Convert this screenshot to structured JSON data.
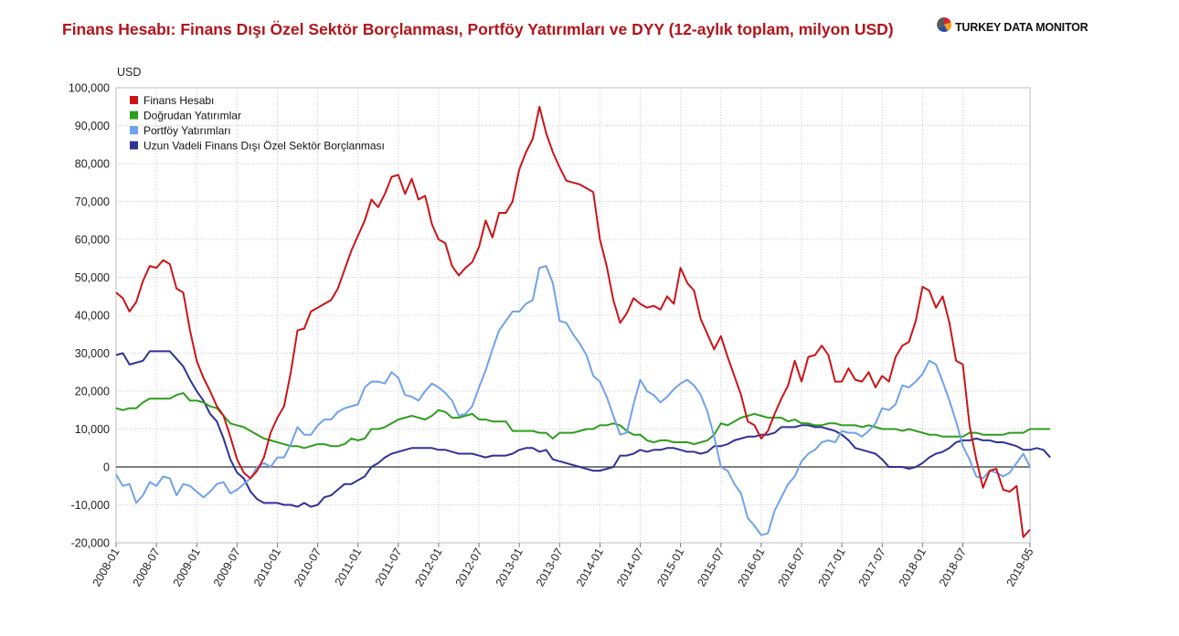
{
  "header": {
    "title": "Finans Hesabı: Finans Dışı Özel Sektör Borçlanması, Portföy Yatırımları ve DYY (12-aylık toplam, milyon USD)",
    "brand": "TURKEY DATA MONITOR"
  },
  "chart_data": {
    "type": "line",
    "title": "Finans Hesabı: Finans Dışı Özel Sektör Borçlanması, Portföy Yatırımları ve DYY (12-aylık toplam, milyon USD)",
    "ylabel": "USD",
    "xlabel": "",
    "ylim": [
      -20000,
      100000
    ],
    "yticks": [
      100000,
      90000,
      80000,
      70000,
      60000,
      50000,
      40000,
      30000,
      20000,
      10000,
      0,
      -10000,
      -20000
    ],
    "ytick_labels": [
      "100,000",
      "90,000",
      "80,000",
      "70,000",
      "60,000",
      "50,000",
      "40,000",
      "30,000",
      "20,000",
      "10,000",
      "0",
      "-10,000",
      "-20,000"
    ],
    "x_start": "2008-01",
    "x_end": "2019-05",
    "xtick_labels": [
      "2008-01",
      "2008-07",
      "2009-01",
      "2009-07",
      "2010-01",
      "2010-07",
      "2011-01",
      "2011-07",
      "2012-01",
      "2012-07",
      "2013-01",
      "2013-07",
      "2014-01",
      "2014-07",
      "2015-01",
      "2015-07",
      "2016-01",
      "2016-07",
      "2017-01",
      "2017-07",
      "2018-01",
      "2018-07",
      "2019-05"
    ],
    "grid": true,
    "legend_position": "top-left",
    "series": [
      {
        "name": "Finans Hesabı",
        "color": "#cc1417",
        "values": [
          46000,
          44500,
          41000,
          43500,
          49000,
          53000,
          52500,
          54500,
          53500,
          47000,
          46000,
          36000,
          28000,
          23500,
          20000,
          16000,
          13500,
          8000,
          2000,
          -1500,
          -3000,
          -1000,
          2500,
          9000,
          13000,
          16000,
          25000,
          36000,
          36500,
          41000,
          42000,
          43000,
          44000,
          47000,
          52000,
          57000,
          61000,
          65000,
          70500,
          68500,
          72000,
          76500,
          77000,
          72000,
          76000,
          70500,
          71500,
          64000,
          60000,
          59000,
          53000,
          50500,
          52500,
          54000,
          58000,
          65000,
          60500,
          67000,
          67000,
          70000,
          78500,
          83000,
          86500,
          95000,
          88000,
          83000,
          79000,
          75500,
          75000,
          74500,
          73500,
          72500,
          60000,
          53000,
          44000,
          38000,
          40500,
          44500,
          43000,
          42000,
          42500,
          41500,
          45000,
          43000,
          52500,
          48500,
          46500,
          39000,
          35000,
          31000,
          34500,
          29000,
          24000,
          19000,
          12000,
          11000,
          7500,
          9500,
          14000,
          18000,
          21500,
          28000,
          22500,
          29000,
          29500,
          32000,
          29500,
          22500,
          22500,
          26000,
          23000,
          22500,
          25000,
          21000,
          24000,
          22500,
          29000,
          32000,
          33000,
          38500,
          47500,
          46500,
          42000,
          45000,
          38000,
          28000,
          27000,
          11000,
          2000,
          -5500,
          -1000,
          -500,
          -6000,
          -6500,
          -5000,
          -18500,
          -16500
        ]
      },
      {
        "name": "Doğrudan Yatırımlar",
        "color": "#2e9c1e",
        "values": [
          15500,
          15000,
          15500,
          15500,
          17000,
          18000,
          18000,
          18000,
          18000,
          19000,
          19500,
          17500,
          17500,
          17000,
          16000,
          15500,
          13500,
          11500,
          11000,
          10500,
          9500,
          8500,
          7500,
          7000,
          6500,
          6000,
          5500,
          5500,
          5000,
          5500,
          6000,
          6000,
          5500,
          5500,
          6000,
          7500,
          7000,
          7500,
          10000,
          10000,
          10500,
          11500,
          12500,
          13000,
          13500,
          13000,
          12500,
          13500,
          15000,
          14500,
          13000,
          13000,
          13500,
          14000,
          12500,
          12500,
          12000,
          12000,
          12000,
          9500,
          9500,
          9500,
          9500,
          9000,
          9000,
          7500,
          9000,
          9000,
          9000,
          9500,
          10000,
          10000,
          11000,
          11000,
          11500,
          11000,
          9500,
          8500,
          8500,
          7000,
          6500,
          7000,
          7000,
          6500,
          6500,
          6500,
          6000,
          6500,
          7000,
          8500,
          11500,
          11000,
          12000,
          13000,
          13500,
          14000,
          13500,
          13000,
          13000,
          13000,
          12000,
          12500,
          11500,
          11500,
          11000,
          11000,
          11500,
          11500,
          11000,
          11000,
          11000,
          10500,
          11000,
          10500,
          10000,
          10000,
          10000,
          9500,
          10000,
          9500,
          9000,
          8500,
          8500,
          8000,
          8000,
          8000,
          8000,
          9000,
          9000,
          8500,
          8500,
          8500,
          8500,
          9000,
          9000,
          9000,
          10000,
          10000,
          10000,
          10000
        ]
      },
      {
        "name": "Portföy Yatırımları",
        "color": "#6fa2ea",
        "values": [
          -2000,
          -5000,
          -4500,
          -9500,
          -7500,
          -4000,
          -5000,
          -2500,
          -3000,
          -7500,
          -4500,
          -5000,
          -6500,
          -8000,
          -6500,
          -4500,
          -4000,
          -7000,
          -6000,
          -4500,
          -3000,
          0,
          1000,
          0,
          2500,
          2500,
          6000,
          10500,
          8500,
          8500,
          11000,
          12500,
          12500,
          14500,
          15500,
          16000,
          16500,
          21000,
          22500,
          22500,
          22000,
          25000,
          23500,
          19000,
          18500,
          17500,
          20000,
          22000,
          21000,
          19500,
          17500,
          13500,
          14000,
          16000,
          21000,
          25500,
          31000,
          36000,
          38500,
          41000,
          41000,
          43000,
          44000,
          52500,
          53000,
          48500,
          38500,
          38000,
          35000,
          32500,
          29500,
          24000,
          22500,
          18500,
          13500,
          8500,
          9000,
          16500,
          23000,
          20000,
          19000,
          17000,
          18500,
          20500,
          22000,
          23000,
          21500,
          19000,
          14500,
          8000,
          0,
          -1000,
          -4500,
          -7000,
          -13500,
          -15500,
          -18000,
          -17500,
          -11500,
          -8000,
          -4500,
          -2500,
          1500,
          3500,
          4500,
          6500,
          7000,
          6500,
          9500,
          9000,
          9000,
          8000,
          9500,
          11500,
          15500,
          15000,
          16500,
          21500,
          21000,
          22500,
          24500,
          28000,
          27000,
          22500,
          17500,
          12000,
          5500,
          2000,
          -2500,
          -3000,
          -1000,
          -1500,
          -2500,
          -1500,
          1000,
          3500,
          0
        ]
      },
      {
        "name": "Uzun Vadeli Finans Dışı Özel Sektör Borçlanması",
        "color": "#2f3296",
        "values": [
          29500,
          30000,
          27000,
          27500,
          28000,
          30500,
          30500,
          30500,
          30500,
          28500,
          26500,
          23000,
          20000,
          17500,
          14000,
          12000,
          7500,
          2000,
          -1500,
          -3000,
          -6500,
          -8500,
          -9500,
          -9500,
          -9500,
          -10000,
          -10000,
          -10500,
          -9500,
          -10500,
          -10000,
          -8000,
          -7500,
          -6000,
          -4500,
          -4500,
          -3500,
          -2500,
          0,
          1000,
          2500,
          3500,
          4000,
          4500,
          5000,
          5000,
          5000,
          5000,
          4500,
          4500,
          4000,
          3500,
          3500,
          3500,
          3000,
          2500,
          3000,
          3000,
          3000,
          3500,
          4500,
          5000,
          5000,
          4000,
          4500,
          2000,
          1500,
          1000,
          500,
          0,
          -500,
          -1000,
          -1000,
          -500,
          0,
          3000,
          3000,
          3500,
          4500,
          4000,
          4500,
          4500,
          5000,
          5000,
          4500,
          4000,
          4000,
          3500,
          4000,
          5500,
          5500,
          6000,
          7000,
          7500,
          8000,
          8000,
          8500,
          8500,
          9000,
          10500,
          10500,
          10500,
          11000,
          11000,
          10500,
          10500,
          10000,
          9500,
          8500,
          7000,
          5000,
          4500,
          4000,
          3500,
          2000,
          0,
          0,
          0,
          -500,
          0,
          1000,
          2500,
          3500,
          4000,
          5000,
          6500,
          7000,
          7000,
          7500,
          7000,
          7000,
          6500,
          6500,
          6000,
          5500,
          4500,
          4500,
          5000,
          4500,
          2500
        ]
      }
    ]
  }
}
